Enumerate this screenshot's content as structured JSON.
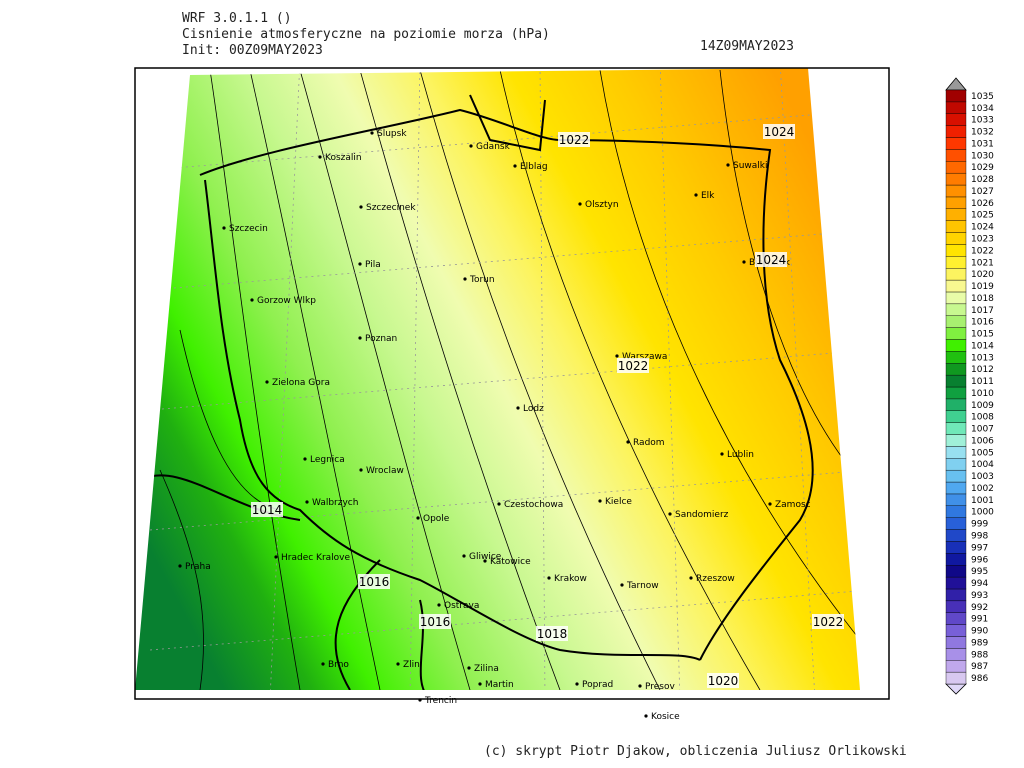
{
  "header": {
    "model": "WRF 3.0.1.1 ()",
    "title": "Cisnienie atmosferyczne na poziomie morza (hPa)",
    "init": "Init: 00Z09MAY2023",
    "valid": "14Z09MAY2023"
  },
  "footer": "(c) skrypt Piotr Djakow, obliczenia Juliusz Orlikowski",
  "cities": [
    {
      "name": "Slupsk"
    },
    {
      "name": "Koszalin"
    },
    {
      "name": "Gdansk"
    },
    {
      "name": "Elblag"
    },
    {
      "name": "Szczecinek"
    },
    {
      "name": "Szczecin"
    },
    {
      "name": "Olsztyn"
    },
    {
      "name": "Suwalki"
    },
    {
      "name": "Elk"
    },
    {
      "name": "Bialystok"
    },
    {
      "name": "Pila"
    },
    {
      "name": "Torun"
    },
    {
      "name": "Gorzow Wlkp"
    },
    {
      "name": "Poznan"
    },
    {
      "name": "Warszawa"
    },
    {
      "name": "Zielona Gora"
    },
    {
      "name": "Lodz"
    },
    {
      "name": "Radom"
    },
    {
      "name": "Lublin"
    },
    {
      "name": "Legnica"
    },
    {
      "name": "Wroclaw"
    },
    {
      "name": "Walbrzych"
    },
    {
      "name": "Czestochowa"
    },
    {
      "name": "Kielce"
    },
    {
      "name": "Sandomierz"
    },
    {
      "name": "Zamosc"
    },
    {
      "name": "Opole"
    },
    {
      "name": "Gliwice"
    },
    {
      "name": "Katowice"
    },
    {
      "name": "Hradec Kralove"
    },
    {
      "name": "Praha"
    },
    {
      "name": "Krakow"
    },
    {
      "name": "Tarnow"
    },
    {
      "name": "Rzeszow"
    },
    {
      "name": "Ostrava"
    },
    {
      "name": "Brno"
    },
    {
      "name": "Zlin"
    },
    {
      "name": "Zilina"
    },
    {
      "name": "Martin"
    },
    {
      "name": "Poprad"
    },
    {
      "name": "Presov"
    },
    {
      "name": "Trencin"
    },
    {
      "name": "Kosice"
    }
  ],
  "contour_labels": [
    1022,
    1024,
    1024,
    1022,
    1014,
    1016,
    1016,
    1018,
    1020,
    1022
  ],
  "colorbar": {
    "levels": [
      986,
      987,
      988,
      989,
      990,
      991,
      992,
      993,
      994,
      995,
      996,
      997,
      998,
      999,
      1000,
      1001,
      1002,
      1003,
      1004,
      1005,
      1006,
      1007,
      1008,
      1009,
      1010,
      1011,
      1012,
      1013,
      1014,
      1015,
      1016,
      1017,
      1018,
      1019,
      1020,
      1021,
      1022,
      1023,
      1024,
      1025,
      1026,
      1027,
      1028,
      1029,
      1030,
      1031,
      1032,
      1033,
      1034,
      1035
    ],
    "colors": [
      "#d8c8f0",
      "#c0a8ec",
      "#a890e8",
      "#9078e0",
      "#7860d8",
      "#6048c8",
      "#4830b8",
      "#3020a8",
      "#201098",
      "#100888",
      "#1018a0",
      "#1830b8",
      "#2048c8",
      "#2860d8",
      "#3078e0",
      "#4090e8",
      "#50a8f0",
      "#68c0f0",
      "#80d0f0",
      "#98e0f0",
      "#a0f0d8",
      "#70e8b8",
      "#40d090",
      "#20b068",
      "#10a040",
      "#088030",
      "#109820",
      "#20c010",
      "#40f000",
      "#80f040",
      "#a8f070",
      "#c8f890",
      "#e8fca8",
      "#f8f890",
      "#fcf460",
      "#fff030",
      "#ffe400",
      "#ffd400",
      "#ffc400",
      "#ffb000",
      "#ffa000",
      "#ff9000",
      "#ff7c00",
      "#ff6800",
      "#ff5000",
      "#ff3800",
      "#f02000",
      "#d81000",
      "#c00800",
      "#a00000"
    ]
  }
}
